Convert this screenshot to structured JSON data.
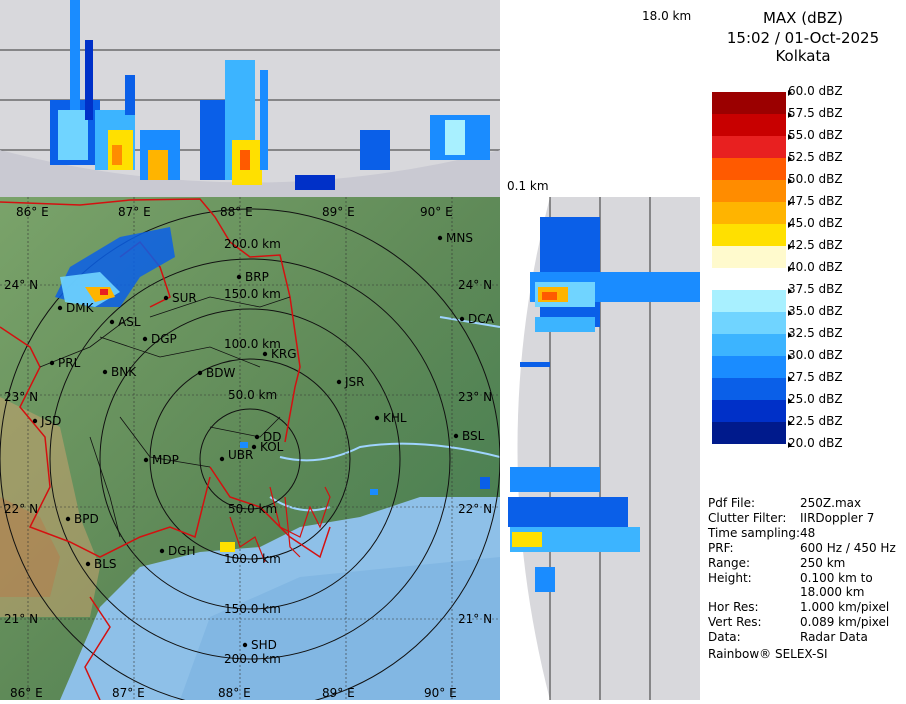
{
  "header": {
    "product": "MAX (dBZ)",
    "datetime": "15:02 / 01-Oct-2025",
    "station": "Kolkata"
  },
  "height_labels": {
    "top": "18.0 km",
    "bottom": "0.1 km"
  },
  "color_scale": [
    {
      "label": "60.0 dBZ",
      "color": "#ffffff"
    },
    {
      "label": "57.5 dBZ",
      "color": "#9b0000"
    },
    {
      "label": "55.0 dBZ",
      "color": "#c80000"
    },
    {
      "label": "52.5 dBZ",
      "color": "#e82020"
    },
    {
      "label": "50.0 dBZ",
      "color": "#ff5a00"
    },
    {
      "label": "47.5 dBZ",
      "color": "#ff8c00"
    },
    {
      "label": "45.0 dBZ",
      "color": "#ffb400"
    },
    {
      "label": "42.5 dBZ",
      "color": "#ffe000"
    },
    {
      "label": "40.0 dBZ",
      "color": "#fffacd"
    },
    {
      "label": "37.5 dBZ",
      "color": "#ffffff"
    },
    {
      "label": "35.0 dBZ",
      "color": "#a8f0ff"
    },
    {
      "label": "32.5 dBZ",
      "color": "#70d4ff"
    },
    {
      "label": "30.0 dBZ",
      "color": "#3cb4ff"
    },
    {
      "label": "27.5 dBZ",
      "color": "#1a8cff"
    },
    {
      "label": "25.0 dBZ",
      "color": "#0a5fe8"
    },
    {
      "label": "22.5 dBZ",
      "color": "#0030c8"
    },
    {
      "label": "20.0 dBZ",
      "color": "#001a8c"
    }
  ],
  "info": [
    {
      "key": "Pdf File:",
      "value": "250Z.max"
    },
    {
      "key": "Clutter Filter:",
      "value": "IIRDoppler 7"
    },
    {
      "key": "Time sampling:",
      "value": "48"
    },
    {
      "key": "PRF:",
      "value": "600 Hz / 450 Hz"
    },
    {
      "key": "Range:",
      "value": "250 km"
    },
    {
      "key": "Height:",
      "value": "0.100 km to 18.000 km"
    },
    {
      "key": "Hor Res:",
      "value": "1.000 km/pixel"
    },
    {
      "key": "Vert Res:",
      "value": "0.089 km/pixel"
    },
    {
      "key": "Data:",
      "value": "Radar Data"
    }
  ],
  "footer": "Rainbow® SELEX-SI",
  "map": {
    "lon_labels": [
      "86° E",
      "87° E",
      "88° E",
      "89° E",
      "90° E"
    ],
    "lat_labels": [
      "24° N",
      "23° N",
      "22° N",
      "21° N"
    ],
    "range_labels": [
      "50.0 km",
      "100.0 km",
      "150.0 km",
      "200.0 km"
    ],
    "cities": [
      "MNS",
      "BRP",
      "SUR",
      "DMK",
      "ASL",
      "DGP",
      "KRG",
      "DCA",
      "PRL",
      "BNK",
      "BDW",
      "JSR",
      "JSD",
      "KHL",
      "DD",
      "KOL",
      "BSL",
      "MDP",
      "UBR",
      "BPD",
      "DGH",
      "BLS",
      "SHD"
    ]
  }
}
